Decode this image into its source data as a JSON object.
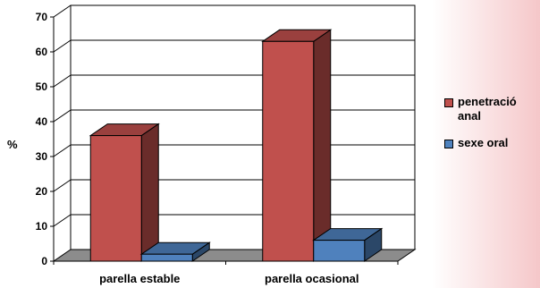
{
  "chart_data": {
    "type": "bar",
    "title": "",
    "xlabel": "",
    "ylabel": "%",
    "ylim": [
      0,
      70
    ],
    "yticks": [
      0,
      10,
      20,
      30,
      40,
      50,
      60,
      70
    ],
    "categories": [
      "parella estable",
      "parella ocasional"
    ],
    "series": [
      {
        "name": "penetració anal",
        "values": [
          36,
          63
        ],
        "color": "#c0504d"
      },
      {
        "name": "sexe oral",
        "values": [
          2,
          6
        ],
        "color": "#4f81bd"
      }
    ],
    "grid": true,
    "legend_position": "right",
    "style": "3d"
  }
}
